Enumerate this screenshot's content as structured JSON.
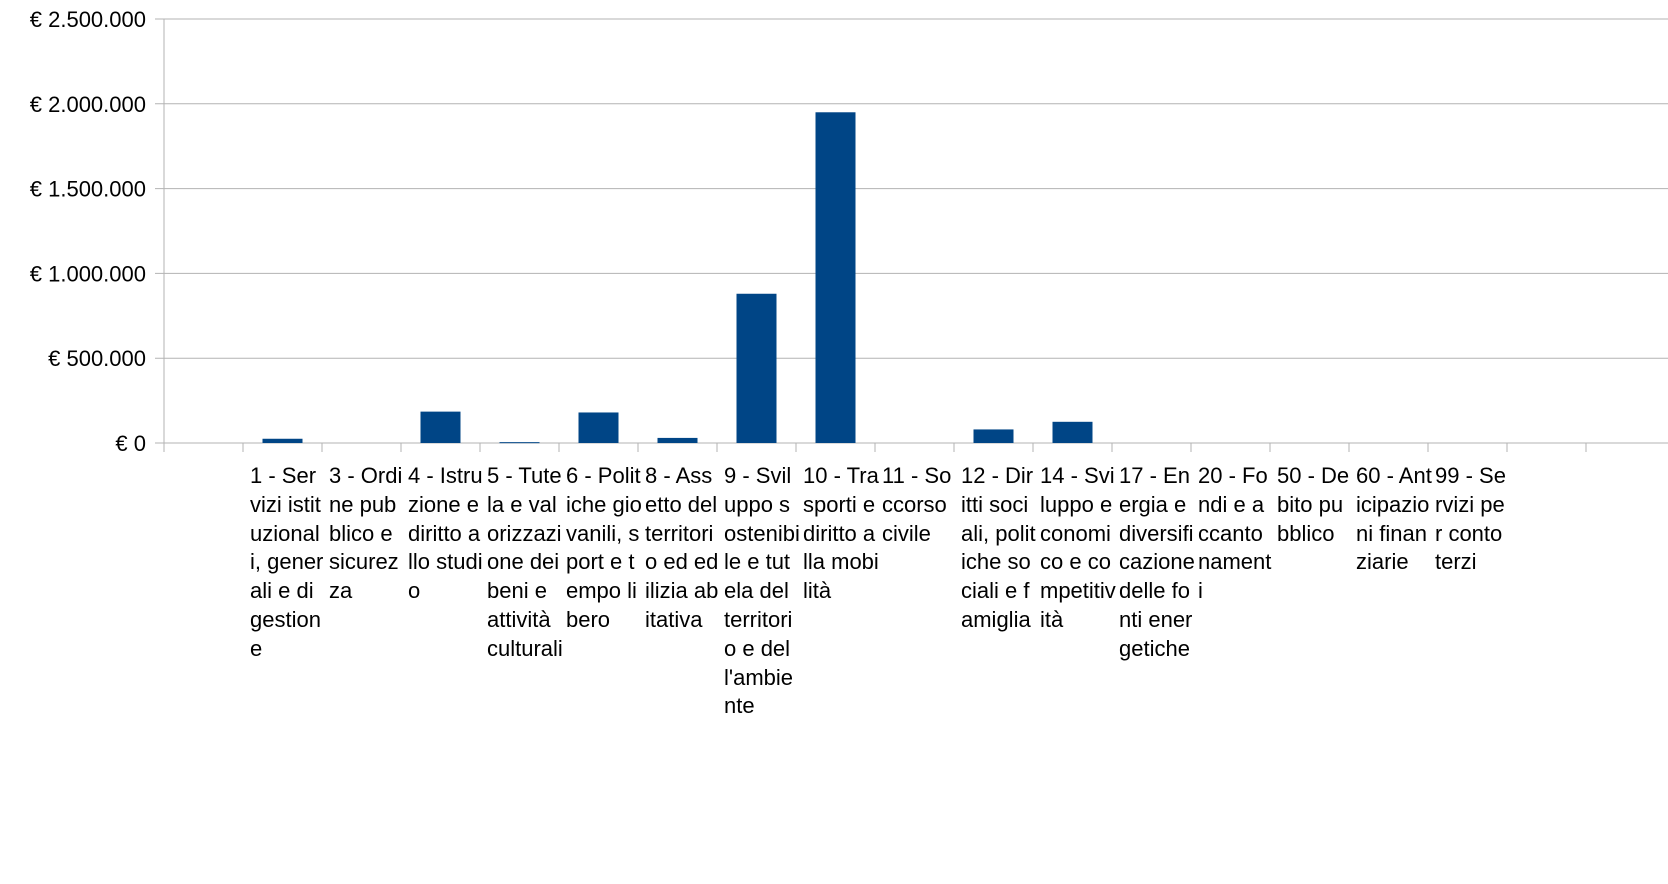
{
  "chart_data": {
    "type": "bar",
    "title": "",
    "xlabel": "",
    "ylabel": "",
    "ylim": [
      0,
      2500000
    ],
    "y_ticks": [
      "€ 0",
      "€ 500.000",
      "€ 1.000.000",
      "€ 1.500.000",
      "€ 2.000.000",
      "€ 2.500.000"
    ],
    "grid": true,
    "bar_color": "#004586",
    "categories": [
      "",
      "1 - Servizi istituzionali, generali e di gestione",
      "3 - Ordine pubblico e sicurezza",
      "4 - Istruzione e diritto allo studio",
      "5 - Tutela e valorizzazione dei beni e attività culturali",
      "6 - Politiche giovanili, sport e tempo libero",
      "8 - Assetto del territorio ed edilizia abitativa",
      "9 - Sviluppo sostenibile e tutela del territorio e dell'ambiente",
      "10 - Trasporti e diritto alla mobilità",
      "11 - Soccorso civile",
      "12 - Diritti sociali, politiche sociali e famiglia",
      "14 - Sviluppo economico e competitività",
      "17 - Energia e diversificazione delle fonti energetiche",
      "20 - Fondi e accantonamenti",
      "50 - Debito pubblico",
      "60 - Anticipazioni finanziarie",
      "99 - Servizi per conto terzi",
      ""
    ],
    "values": [
      0,
      25000,
      0,
      185000,
      5000,
      180000,
      30000,
      880000,
      1950000,
      0,
      80000,
      125000,
      0,
      0,
      0,
      0,
      0,
      0
    ]
  }
}
